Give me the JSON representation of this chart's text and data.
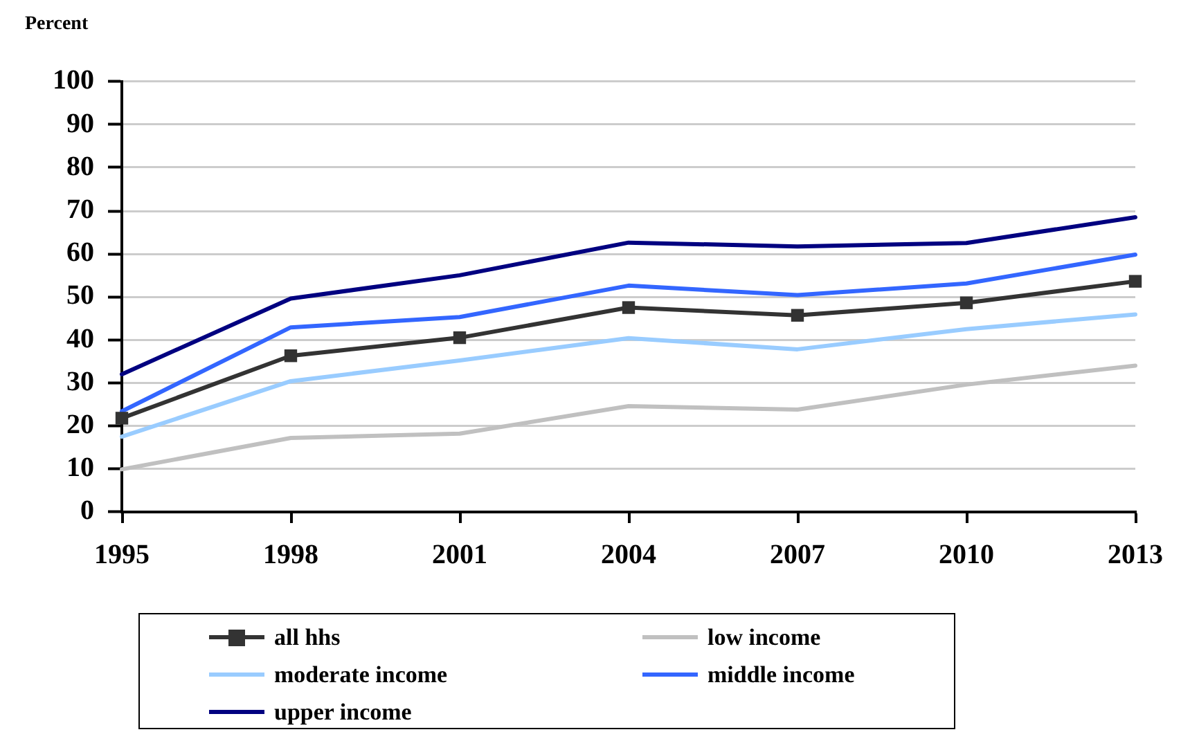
{
  "chart_data": {
    "type": "line",
    "ylabel": "Percent",
    "categories": [
      "1995",
      "1998",
      "2001",
      "2004",
      "2007",
      "2010",
      "2013"
    ],
    "ylim": [
      0,
      100
    ],
    "yticks": [
      0,
      10,
      20,
      30,
      40,
      50,
      60,
      70,
      80,
      90,
      100
    ],
    "grid": "y",
    "legend": "bottom",
    "line_style": "solid",
    "series": [
      {
        "name": "all hhs",
        "color": "#333333",
        "marker": "square",
        "values": [
          21.8,
          36.3,
          40.5,
          47.5,
          45.7,
          48.6,
          53.6
        ]
      },
      {
        "name": "low income",
        "color": "#c0c0c0",
        "marker": "none",
        "values": [
          9.9,
          17.2,
          18.2,
          24.6,
          23.8,
          29.6,
          34.0
        ]
      },
      {
        "name": "moderate income",
        "color": "#99ccff",
        "marker": "none",
        "values": [
          17.5,
          30.4,
          35.2,
          40.4,
          37.8,
          42.5,
          45.9
        ]
      },
      {
        "name": "middle income",
        "color": "#3366ff",
        "marker": "none",
        "values": [
          23.4,
          42.9,
          45.3,
          52.6,
          50.4,
          53.1,
          59.8
        ]
      },
      {
        "name": "upper income",
        "color": "#000080",
        "marker": "none",
        "values": [
          32.0,
          49.6,
          55.0,
          62.6,
          61.7,
          62.5,
          68.5
        ]
      }
    ]
  }
}
